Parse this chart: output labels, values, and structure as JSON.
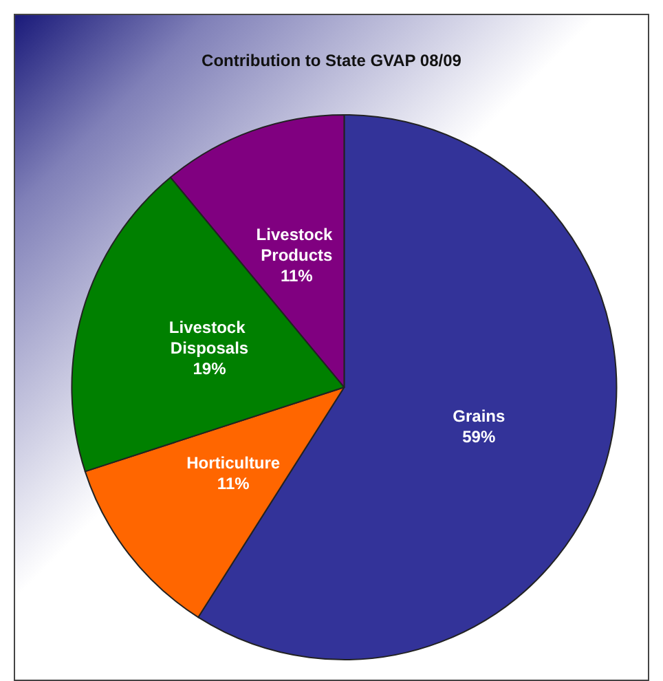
{
  "chart_data": {
    "type": "pie",
    "title": "Contribution to State GVAP 08/09",
    "categories": [
      "Grains",
      "Horticulture",
      "Livestock Disposals",
      "Livestock Products"
    ],
    "values": [
      59,
      11,
      19,
      11
    ],
    "colors": [
      "#333399",
      "#ff6600",
      "#008000",
      "#800080"
    ],
    "value_labels": [
      "59%",
      "11%",
      "19%",
      "11%"
    ],
    "legend": false
  }
}
